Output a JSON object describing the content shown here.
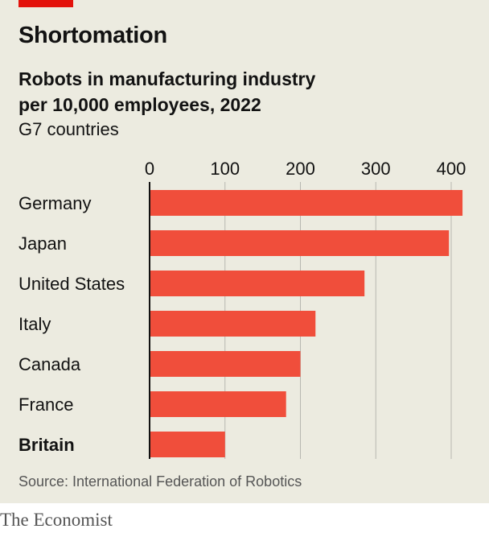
{
  "header": {
    "headline": "Shortomation",
    "subtitle_line1": "Robots in manufacturing industry",
    "subtitle_line2": "per 10,000 employees, 2022",
    "note": "G7 countries"
  },
  "footer": {
    "source": "Source: International Federation of Robotics",
    "brand": "The Economist"
  },
  "colors": {
    "bar": "#f04e3b",
    "accent": "#e3120b",
    "background": "#ecebe0"
  },
  "chart_data": {
    "type": "bar",
    "orientation": "horizontal",
    "title": "Robots in manufacturing industry per 10,000 employees, 2022",
    "categories": [
      "Germany",
      "Japan",
      "United States",
      "Italy",
      "Canada",
      "France",
      "Britain"
    ],
    "values": [
      415,
      397,
      285,
      220,
      200,
      181,
      100
    ],
    "highlight": [
      "Britain"
    ],
    "xlim": [
      0,
      420
    ],
    "xticks": [
      0,
      100,
      200,
      300,
      400
    ],
    "grid": true,
    "xlabel": "",
    "ylabel": ""
  }
}
